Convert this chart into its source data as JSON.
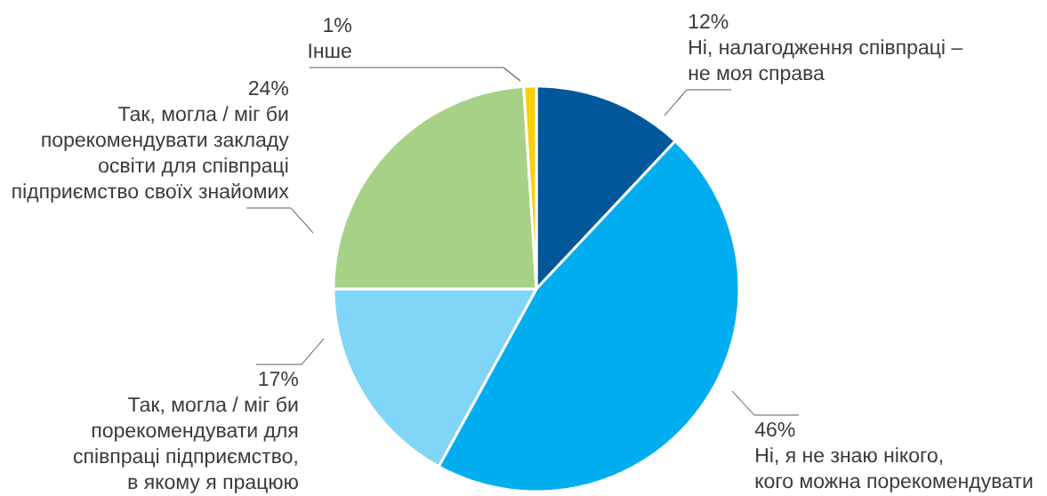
{
  "chart_data": {
    "type": "pie",
    "categories": [
      "Ні, налагодження співпраці – не моя справа",
      "Ні, я не знаю нікого, кого можна порекомендувати",
      "Так, могла / міг би порекомендувати для співпраці підприємство, в якому я працюю",
      "Так, могла / міг би порекомендувати закладу освіти для співпраці підприємство своїх знайомих",
      "Інше"
    ],
    "values": [
      12,
      46,
      17,
      24,
      1
    ],
    "colors": [
      "#00589a",
      "#00aeef",
      "#81d5f7",
      "#a6d186",
      "#fccf0a"
    ],
    "value_labels": [
      "12%",
      "46%",
      "17%",
      "24%",
      "1%"
    ]
  }
}
